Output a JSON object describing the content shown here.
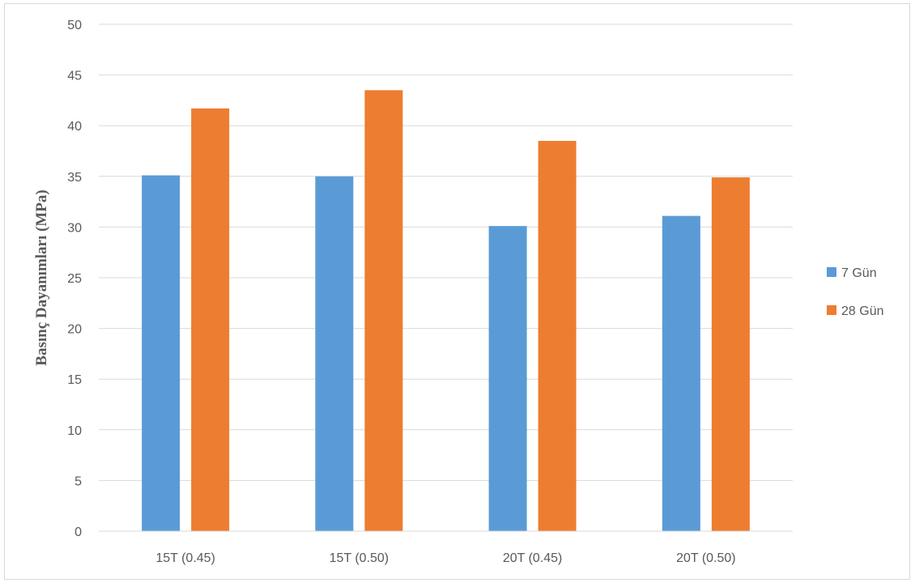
{
  "chart_data": {
    "type": "bar",
    "categories": [
      "15T (0.45)",
      "15T (0.50)",
      "20T (0.45)",
      "20T (0.50)"
    ],
    "series": [
      {
        "name": "7 Gün",
        "values": [
          35.1,
          35.0,
          30.1,
          31.1
        ],
        "color": "#5b9bd5"
      },
      {
        "name": "28 Gün",
        "values": [
          41.7,
          43.5,
          38.5,
          34.9
        ],
        "color": "#ed7d31"
      }
    ],
    "title": "",
    "xlabel": "",
    "ylabel": "Basınç Dayanımları (MPa)",
    "ylim": [
      0,
      50
    ],
    "yticks": [
      "0",
      "5",
      "10",
      "15",
      "20",
      "25",
      "30",
      "35",
      "40",
      "45",
      "50"
    ],
    "grid": true,
    "legend_position": "right"
  }
}
